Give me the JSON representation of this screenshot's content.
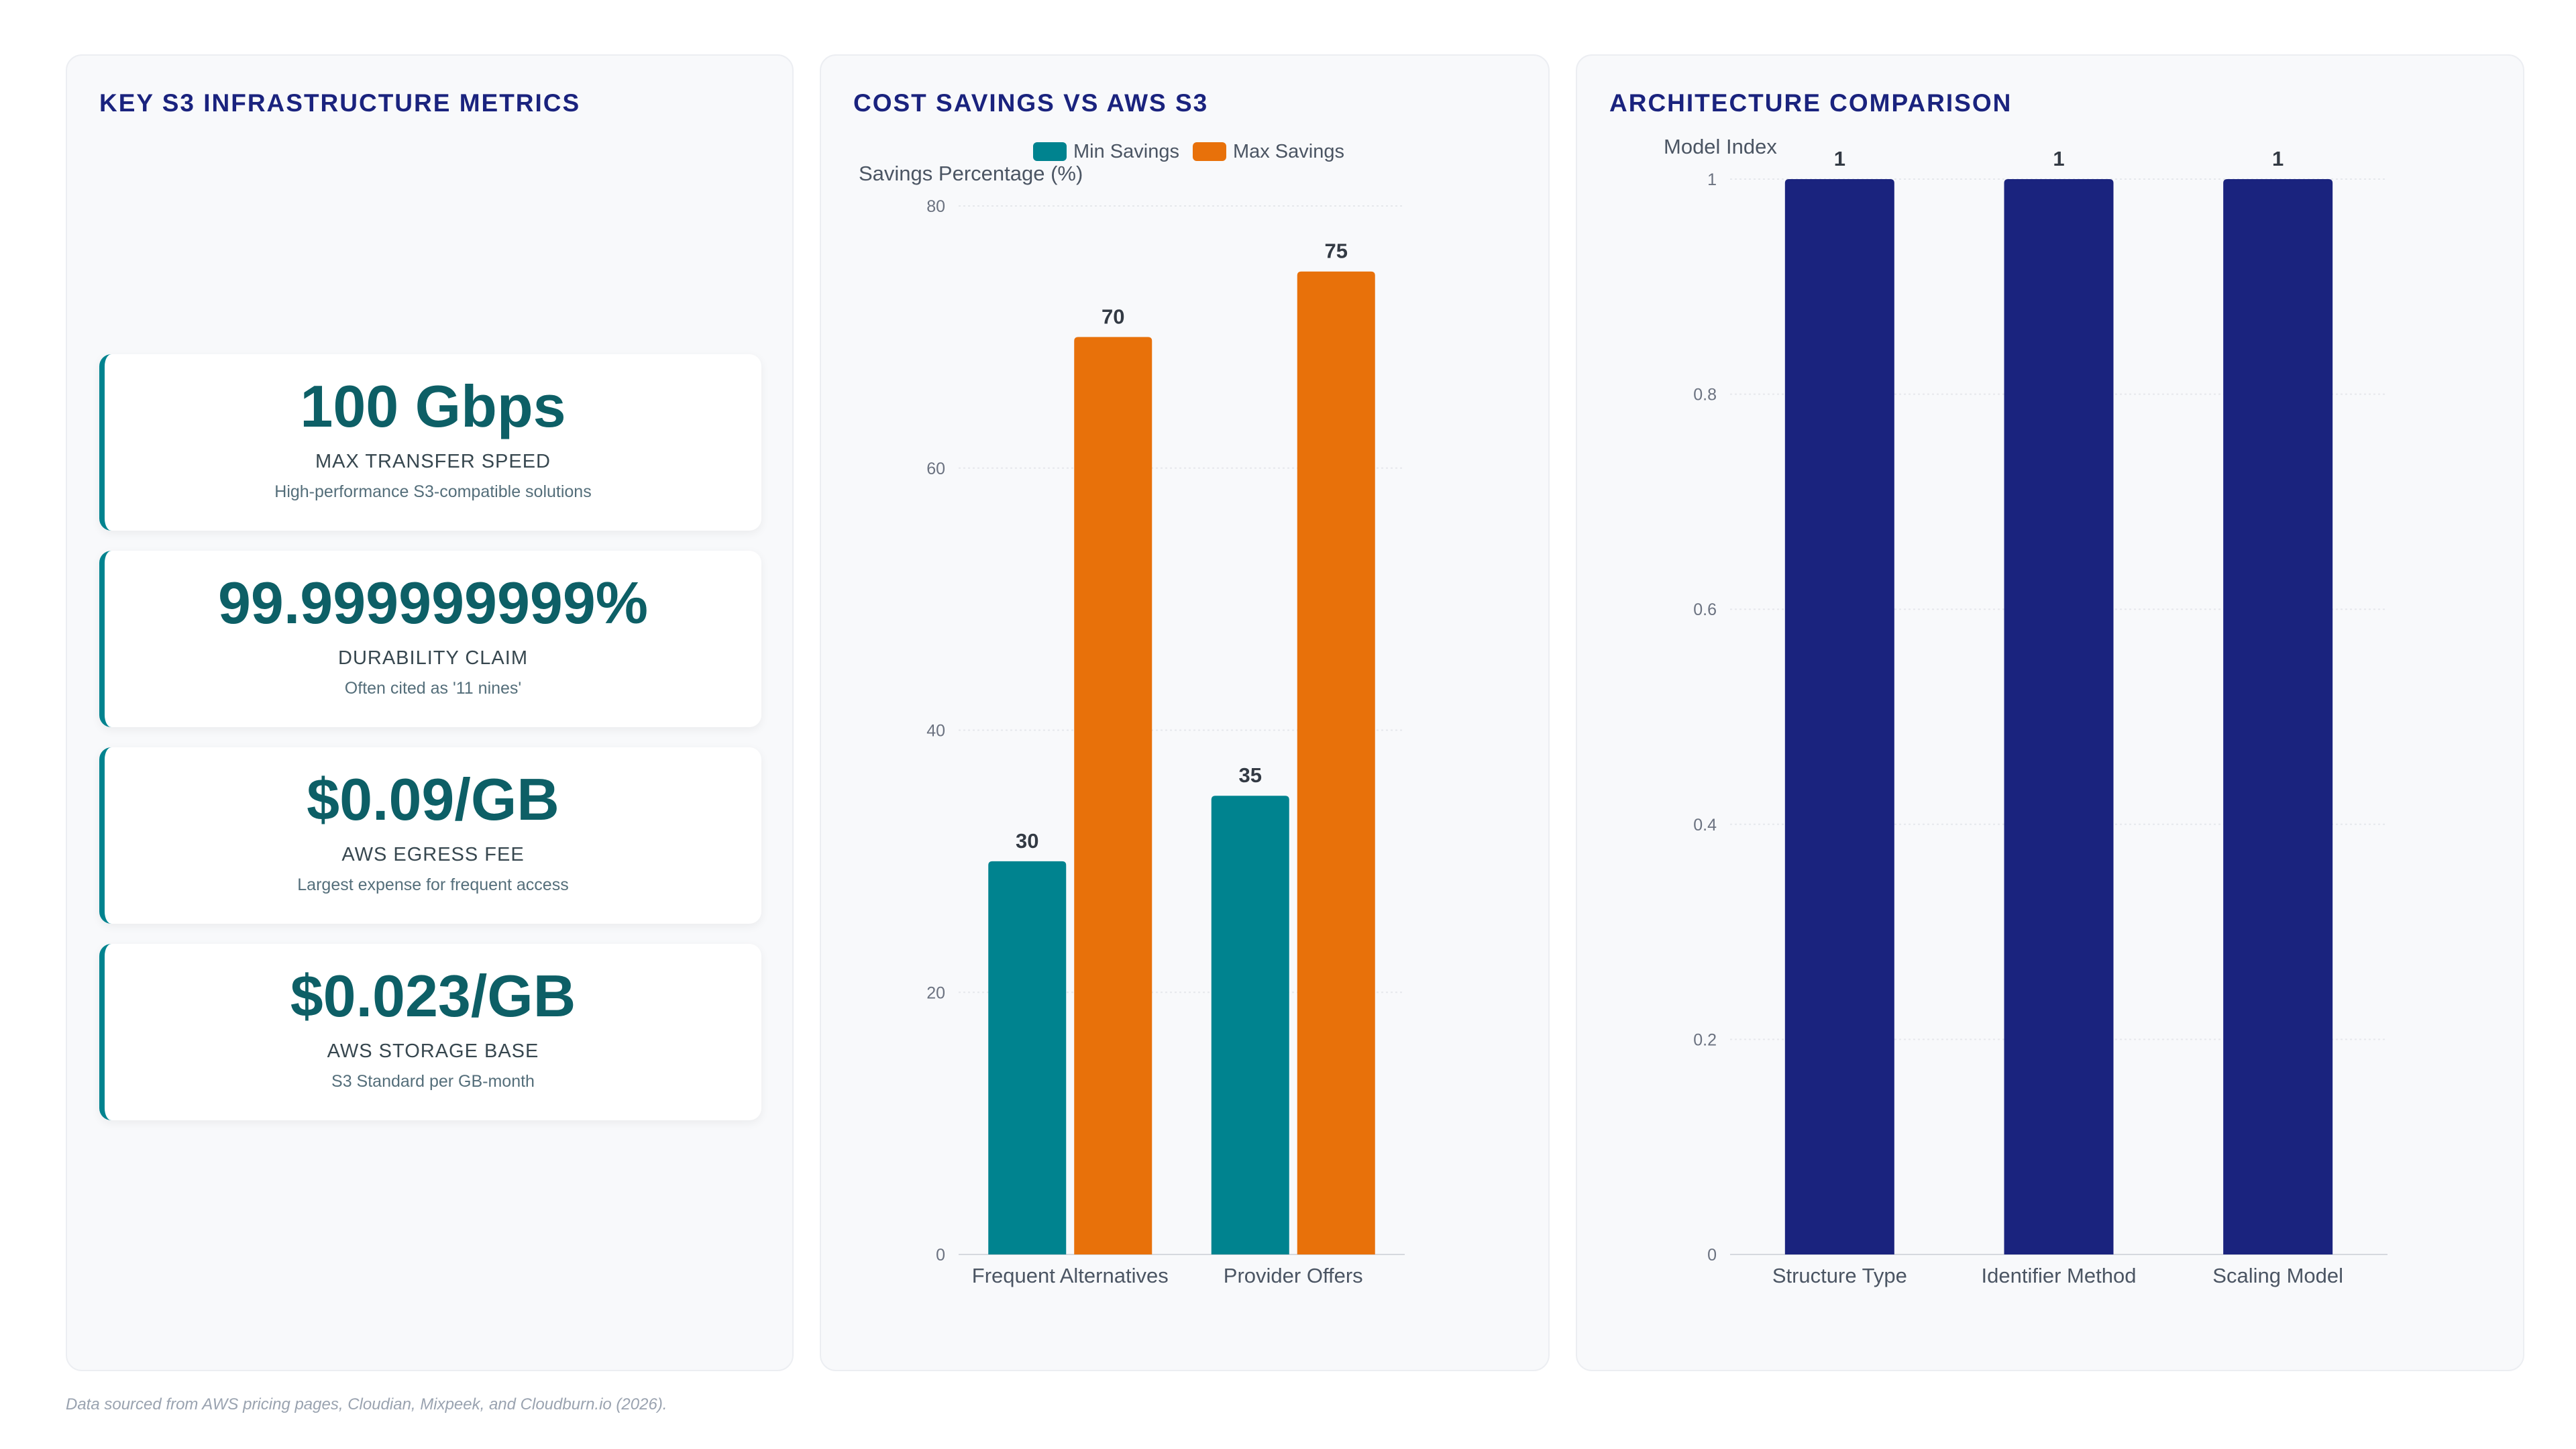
{
  "metrics_panel": {
    "title": "KEY S3 INFRASTRUCTURE METRICS",
    "cards": [
      {
        "value": "100 Gbps",
        "label": "MAX TRANSFER SPEED",
        "description": "High-performance S3-compatible solutions"
      },
      {
        "value": "99.999999999%",
        "label": "DURABILITY CLAIM",
        "description": "Often cited as '11 nines'"
      },
      {
        "value": "$0.09/GB",
        "label": "AWS EGRESS FEE",
        "description": "Largest expense for frequent access"
      },
      {
        "value": "$0.023/GB",
        "label": "AWS STORAGE BASE",
        "description": "S3 Standard per GB-month"
      }
    ]
  },
  "footnote": "Data sourced from AWS pricing pages, Cloudian, Mixpeek, and Cloudburn.io (2026).",
  "chart_data": [
    {
      "type": "bar",
      "title": "COST SAVINGS VS AWS S3",
      "categories": [
        "Frequent Alternatives",
        "Provider Offers"
      ],
      "series": [
        {
          "name": "Min Savings",
          "values": [
            30,
            35
          ],
          "color": "#00838f"
        },
        {
          "name": "Max Savings",
          "values": [
            70,
            75
          ],
          "color": "#e8710a"
        }
      ],
      "ylabel": "Savings Percentage (%)",
      "xlabel": "",
      "ylim": [
        0,
        80
      ],
      "yticks": [
        0,
        20,
        40,
        60,
        80
      ],
      "legend": "top-center",
      "grid": true,
      "data_labels": true
    },
    {
      "type": "bar",
      "title": "ARCHITECTURE COMPARISON",
      "categories": [
        "Structure Type",
        "Identifier Method",
        "Scaling Model"
      ],
      "series": [
        {
          "values": [
            1,
            1,
            1
          ],
          "color": "#1a237e"
        }
      ],
      "ylabel": "Model Index",
      "xlabel": "",
      "ylim": [
        0,
        1
      ],
      "yticks": [
        0,
        0.2,
        0.4,
        0.6,
        0.8,
        1
      ],
      "legend": "none",
      "grid": true,
      "data_labels": true
    }
  ]
}
